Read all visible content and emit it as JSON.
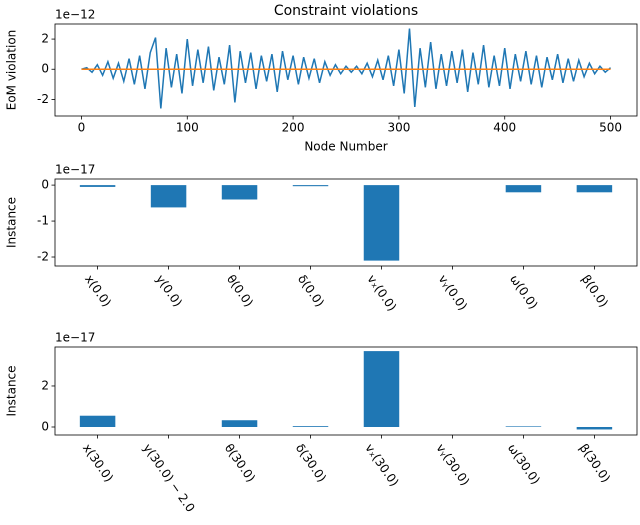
{
  "chart_data": [
    {
      "type": "line",
      "title": "Constraint violations",
      "xlabel": "Node Number",
      "ylabel": "EoM violation",
      "offset_label": "1e−12",
      "xlim": [
        -25,
        525
      ],
      "ylim": [
        -3.1,
        3.0
      ],
      "xticks": [
        0,
        100,
        200,
        300,
        400,
        500
      ],
      "yticks": [
        -2,
        0,
        2
      ],
      "series": [
        {
          "color": "#1f77b4",
          "x": [
            0,
            5,
            10,
            15,
            20,
            25,
            30,
            35,
            40,
            45,
            50,
            55,
            60,
            65,
            70,
            75,
            80,
            85,
            90,
            95,
            100,
            105,
            110,
            115,
            120,
            125,
            130,
            135,
            140,
            145,
            150,
            155,
            160,
            165,
            170,
            175,
            180,
            185,
            190,
            195,
            200,
            205,
            210,
            215,
            220,
            225,
            230,
            235,
            240,
            245,
            250,
            255,
            260,
            265,
            270,
            275,
            280,
            285,
            290,
            295,
            300,
            305,
            310,
            315,
            320,
            325,
            330,
            335,
            340,
            345,
            350,
            355,
            360,
            365,
            370,
            375,
            380,
            385,
            390,
            395,
            400,
            405,
            410,
            415,
            420,
            425,
            430,
            435,
            440,
            445,
            450,
            455,
            460,
            465,
            470,
            475,
            480,
            485,
            490,
            495,
            500
          ],
          "values": [
            0.0,
            0.1,
            -0.2,
            0.3,
            -0.4,
            0.5,
            -0.6,
            0.4,
            -0.8,
            0.7,
            -1.0,
            0.9,
            -1.3,
            1.1,
            2.1,
            -2.6,
            1.4,
            -1.2,
            1.0,
            -1.6,
            2.0,
            -1.1,
            1.3,
            -0.9,
            1.5,
            -1.4,
            0.8,
            -1.0,
            1.6,
            -2.2,
            1.2,
            -0.9,
            1.1,
            -1.3,
            0.9,
            -0.8,
            1.0,
            -1.5,
            1.2,
            -0.7,
            0.9,
            -1.0,
            0.8,
            -0.6,
            0.7,
            -0.9,
            0.5,
            -0.4,
            0.3,
            -0.3,
            0.2,
            -0.2,
            0.2,
            -0.3,
            0.4,
            -0.5,
            0.6,
            -0.7,
            0.9,
            -1.1,
            1.3,
            -1.6,
            2.7,
            -2.5,
            1.4,
            -1.2,
            1.8,
            -1.3,
            1.0,
            -1.1,
            1.2,
            -0.9,
            1.3,
            -1.5,
            1.1,
            -1.0,
            1.6,
            -1.2,
            0.9,
            -1.1,
            1.4,
            -1.3,
            1.0,
            -0.8,
            1.2,
            -1.0,
            0.9,
            -1.2,
            0.8,
            -0.7,
            1.0,
            -0.9,
            0.7,
            -0.8,
            0.6,
            -0.5,
            0.4,
            -0.3,
            0.2,
            -0.2,
            0.1
          ]
        },
        {
          "color": "#ff7f0e",
          "x": [
            0,
            500
          ],
          "values": [
            0,
            0
          ]
        }
      ]
    },
    {
      "type": "bar",
      "ylabel": "Instance",
      "offset_label": "1e−17",
      "color": "#1f77b4",
      "categories": [
        "x(0.0)",
        "y(0.0)",
        "θ(0.0)",
        "δ(0.0)",
        "vₓ(0.0)",
        "vᵧ(0.0)",
        "ω(0.0)",
        "β(0.0)"
      ],
      "values": [
        -0.05,
        -0.62,
        -0.4,
        -0.03,
        -2.1,
        0,
        -0.2,
        -0.2
      ],
      "ylim": [
        -2.25,
        0.17
      ],
      "yticks": [
        -2,
        -1,
        0
      ]
    },
    {
      "type": "bar",
      "ylabel": "Instance",
      "offset_label": "1e−17",
      "color": "#1f77b4",
      "categories": [
        "x(30.0)",
        "y(30.0) − 2.0",
        "θ(30.0)",
        "δ(30.0)",
        "vₓ(30.0)",
        "vᵧ(30.0)",
        "ω(30.0)",
        "β(30.0)"
      ],
      "values": [
        0.55,
        0,
        0.33,
        0.04,
        3.7,
        0,
        0.03,
        -0.12
      ],
      "ylim": [
        -0.39,
        3.9
      ],
      "yticks": [
        0,
        2
      ]
    }
  ]
}
